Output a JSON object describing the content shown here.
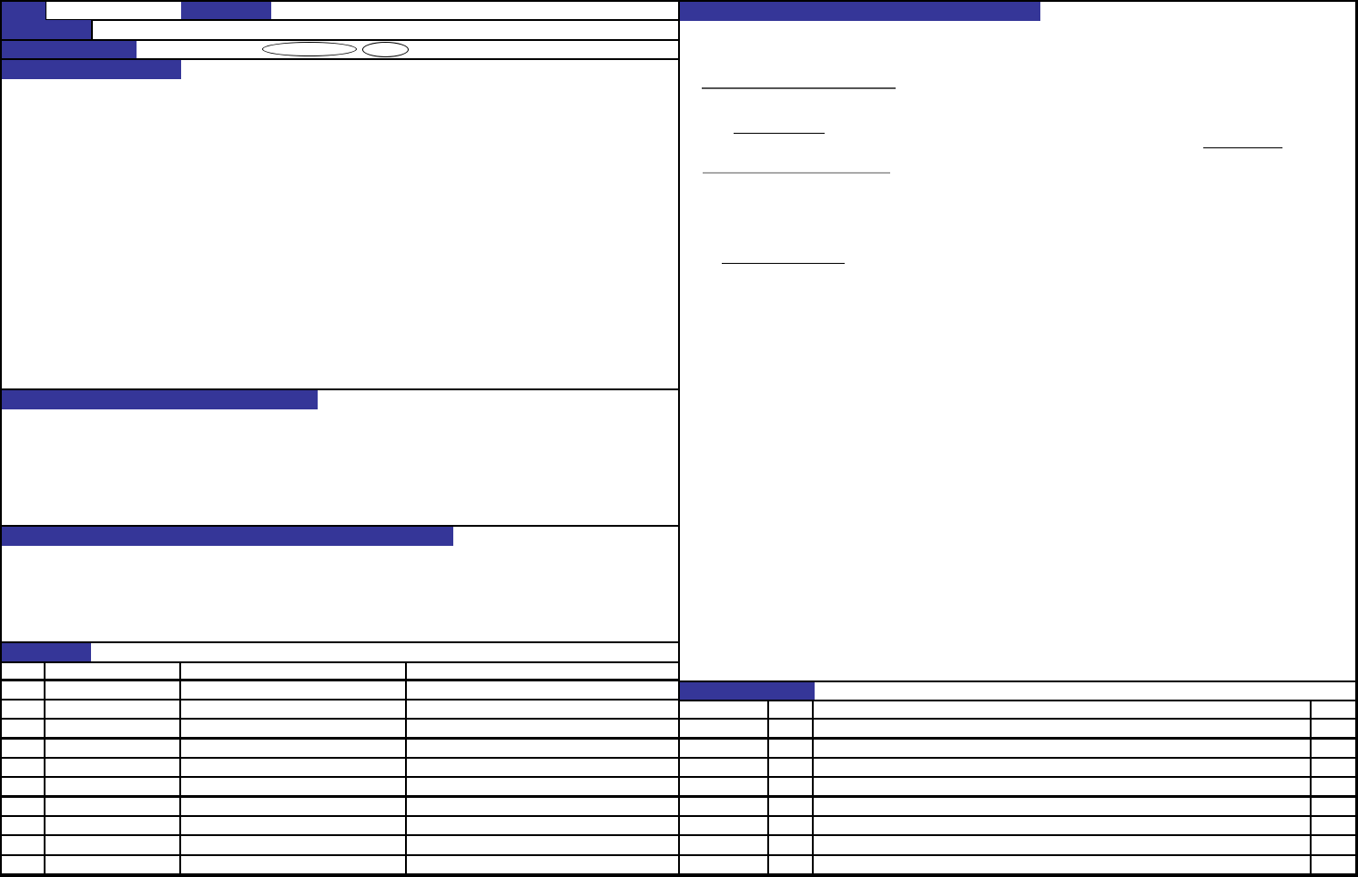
{
  "colors": {
    "header_band": "#353698",
    "border": "#000000",
    "background": "#ffffff",
    "scrollbar": "#000000"
  },
  "left_table": {
    "header": [
      "",
      "",
      "",
      ""
    ],
    "rows": [
      [
        "",
        "",
        "",
        ""
      ],
      [
        "",
        "",
        "",
        ""
      ],
      [
        "",
        "",
        "",
        ""
      ],
      [
        "",
        "",
        "",
        ""
      ],
      [
        "",
        "",
        "",
        ""
      ],
      [
        "",
        "",
        "",
        ""
      ],
      [
        "",
        "",
        "",
        ""
      ],
      [
        "",
        "",
        "",
        ""
      ],
      [
        "",
        "",
        "",
        ""
      ],
      [
        "",
        "",
        "",
        ""
      ]
    ]
  },
  "right_table": {
    "rows": [
      [
        "",
        "",
        "",
        ""
      ],
      [
        "",
        "",
        "",
        ""
      ],
      [
        "",
        "",
        "",
        ""
      ],
      [
        "",
        "",
        "",
        ""
      ],
      [
        "",
        "",
        "",
        ""
      ],
      [
        "",
        "",
        "",
        ""
      ],
      [
        "",
        "",
        "",
        ""
      ],
      [
        "",
        "",
        "",
        ""
      ],
      [
        "",
        "",
        "",
        ""
      ]
    ]
  }
}
